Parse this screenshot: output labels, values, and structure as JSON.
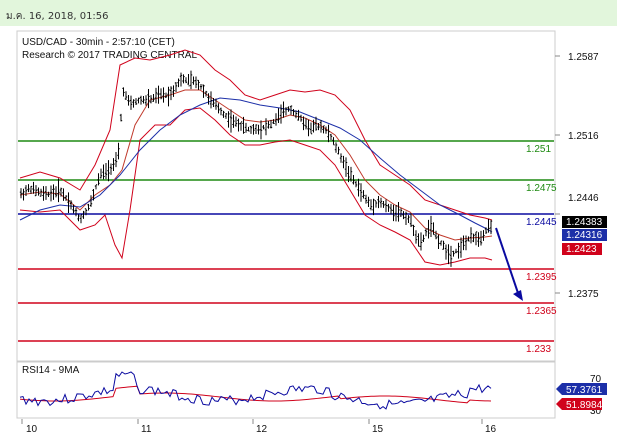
{
  "header": {
    "timestamp": "ม.ค. 16, 2018, 01:56"
  },
  "chart": {
    "title_line1": "USD/CAD - 30min - 2:57:10 (CET)",
    "title_line2": "Research © 2017 TRADING CENTRAL",
    "price_axis": [
      "1.2587",
      "1.2516",
      "1.2446",
      "1.2375"
    ],
    "x_axis": [
      "10",
      "11",
      "12",
      "15",
      "16"
    ],
    "price_badges": {
      "current": "1.24383",
      "blue": "1.24316",
      "red": "1.2423"
    },
    "colors": {
      "green": "#1e8a12",
      "blue": "#0a0aa0",
      "red": "#d0021b",
      "price": "#000000",
      "ma_blue": "#1c2fa8"
    }
  },
  "levels": [
    {
      "label": "1.251",
      "color": "green"
    },
    {
      "label": "1.2475",
      "color": "green"
    },
    {
      "label": "1.2445",
      "color": "blue"
    },
    {
      "label": "1.2395",
      "color": "red"
    },
    {
      "label": "1.2365",
      "color": "red"
    },
    {
      "label": "1.233",
      "color": "red"
    }
  ],
  "rsi": {
    "title": "RSI14 - 9MA",
    "axis": [
      "70",
      "30"
    ],
    "badges": {
      "rsi": "57.3761",
      "ma": "51.8984"
    }
  }
}
